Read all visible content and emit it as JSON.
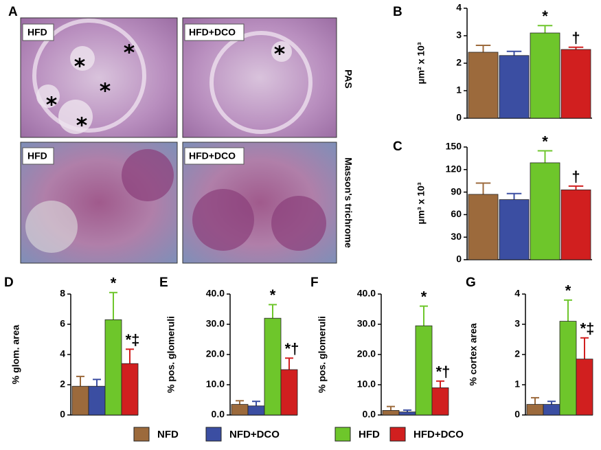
{
  "panel_a": {
    "panel": "A",
    "images": [
      {
        "label": "HFD"
      },
      {
        "label": "HFD+DCO"
      },
      {
        "label": "HFD"
      },
      {
        "label": "HFD+DCO"
      }
    ],
    "stains": [
      "PAS",
      "Masson's trichrome"
    ]
  },
  "legend": [
    {
      "name": "NFD",
      "color": "#9c6a3c"
    },
    {
      "name": "NFD+DCO",
      "color": "#3b4ea2"
    },
    {
      "name": "HFD",
      "color": "#6ec62b"
    },
    {
      "name": "HFD+DCO",
      "color": "#d11f1f"
    }
  ],
  "chart_data": [
    {
      "type": "bar",
      "panel": "B",
      "y_label": "µm² x 10³",
      "ylim": [
        0,
        4
      ],
      "yticks": [
        0,
        1,
        2,
        3,
        4
      ],
      "values": [
        2.4,
        2.28,
        3.1,
        2.5
      ],
      "errors": [
        0.25,
        0.15,
        0.27,
        0.08
      ],
      "bar_labels": [
        null,
        null,
        "*",
        "†"
      ]
    },
    {
      "type": "bar",
      "panel": "C",
      "y_label": "µm³ x 10³",
      "ylim": [
        0,
        150
      ],
      "yticks": [
        0,
        30,
        60,
        90,
        120,
        150
      ],
      "values": [
        87,
        80,
        129,
        93
      ],
      "errors": [
        15,
        8,
        16,
        5
      ],
      "bar_labels": [
        null,
        null,
        "*",
        "†"
      ]
    },
    {
      "type": "bar",
      "panel": "D",
      "y_label": "% glom. area",
      "ylim": [
        0,
        8
      ],
      "yticks": [
        0,
        2,
        4,
        6,
        8
      ],
      "values": [
        1.9,
        1.9,
        6.3,
        3.4
      ],
      "errors": [
        0.65,
        0.45,
        1.8,
        0.95
      ],
      "bar_labels": [
        null,
        null,
        "*",
        "*‡"
      ]
    },
    {
      "type": "bar",
      "panel": "E",
      "y_label": "% pos. glomeruli",
      "ylim": [
        0,
        40
      ],
      "yticks": [
        {
          "value": 0,
          "label": "0.0"
        },
        {
          "value": 10,
          "label": "10.0"
        },
        {
          "value": 20,
          "label": "20.0"
        },
        {
          "value": 30,
          "label": "30.0"
        },
        {
          "value": 40,
          "label": "40.0"
        }
      ],
      "values": [
        3.5,
        3,
        32,
        15
      ],
      "errors": [
        1.2,
        1.5,
        4.5,
        3.8
      ],
      "bar_labels": [
        null,
        null,
        "*",
        "*†"
      ]
    },
    {
      "type": "bar",
      "panel": "F",
      "y_label": "% pos. glomeruli",
      "ylim": [
        0,
        40
      ],
      "yticks": [
        {
          "value": 0,
          "label": "0.0"
        },
        {
          "value": 10,
          "label": "10.0"
        },
        {
          "value": 20,
          "label": "20.0"
        },
        {
          "value": 30,
          "label": "30.0"
        },
        {
          "value": 40,
          "label": "40.0"
        }
      ],
      "values": [
        1.5,
        1,
        29.5,
        9
      ],
      "errors": [
        1.3,
        0.6,
        6.5,
        2.2
      ],
      "bar_labels": [
        null,
        null,
        "*",
        "*†"
      ]
    },
    {
      "type": "bar",
      "panel": "G",
      "y_label": "% cortex area",
      "ylim": [
        0,
        4
      ],
      "yticks": [
        0,
        1,
        2,
        3,
        4
      ],
      "values": [
        0.35,
        0.35,
        3.1,
        1.85
      ],
      "errors": [
        0.22,
        0.1,
        0.7,
        0.7
      ],
      "bar_labels": [
        null,
        null,
        "*",
        "*‡"
      ]
    }
  ]
}
